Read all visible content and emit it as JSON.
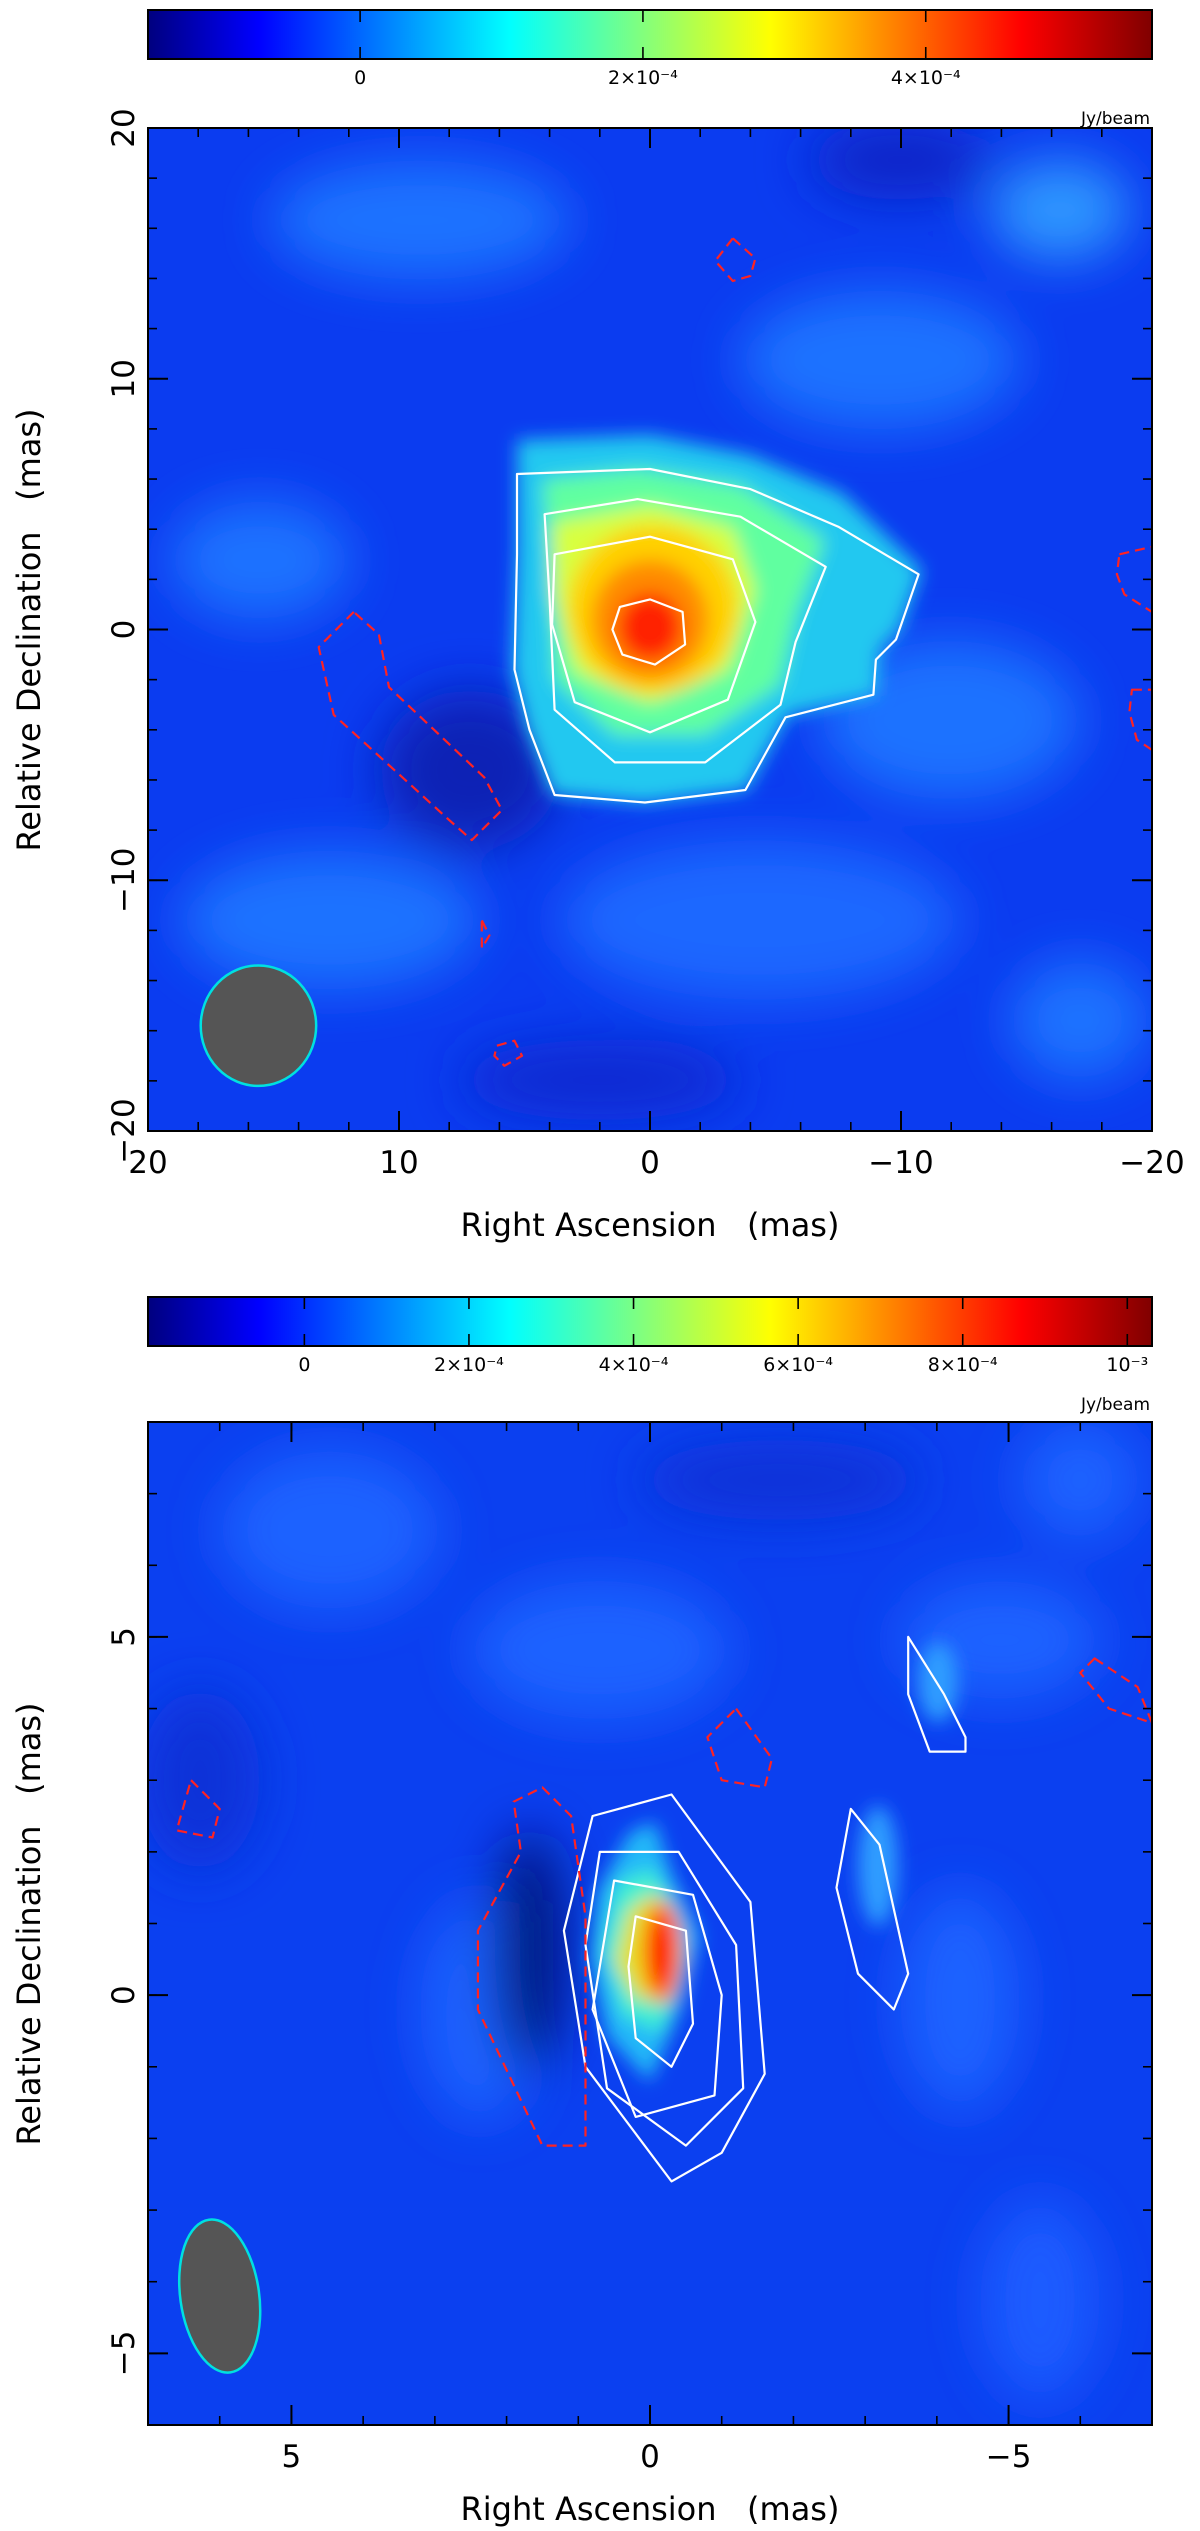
{
  "chart_data": [
    {
      "type": "heatmap",
      "xlabel": "Right Ascension   (mas)",
      "ylabel": "Relative Declination   (mas)",
      "xlim": [
        20,
        -20
      ],
      "ylim": [
        -20,
        20
      ],
      "x_ticks": [
        {
          "value": 20,
          "label": "20"
        },
        {
          "value": 10,
          "label": "10"
        },
        {
          "value": 0,
          "label": "0"
        },
        {
          "value": -10,
          "label": "−10"
        },
        {
          "value": -20,
          "label": "−20"
        }
      ],
      "y_ticks": [
        {
          "value": 20,
          "label": "20"
        },
        {
          "value": 10,
          "label": "10"
        },
        {
          "value": 0,
          "label": "0"
        },
        {
          "value": -10,
          "label": "−10"
        },
        {
          "value": -20,
          "label": "−20"
        }
      ],
      "minor_tick_step": 2,
      "colorbar": {
        "range": [
          -0.00015,
          0.00056
        ],
        "unit": "Jy/beam",
        "ticks": [
          {
            "value": 0,
            "label": "0"
          },
          {
            "value": 0.0002,
            "label": "2×10⁻⁴"
          },
          {
            "value": 0.0004,
            "label": "4×10⁻⁴"
          }
        ]
      },
      "colors": {
        "positive_contour": "#ffffff",
        "negative_contour": "#ff2222",
        "beam_fill": "#555555",
        "beam_edge": "#00e0e0"
      },
      "beam": {
        "x": 15.6,
        "y": -15.8,
        "major": 4.8,
        "minor": 4.6
      },
      "contours": [
        {
          "sign": "positive",
          "points": [
            [
              5.3,
              6.2
            ],
            [
              0,
              6.4
            ],
            [
              -4,
              5.6
            ],
            [
              -7.5,
              4.1
            ],
            [
              -10.7,
              2.2
            ],
            [
              -9.8,
              -0.4
            ],
            [
              -9.0,
              -1.2
            ],
            [
              -8.9,
              -2.6
            ],
            [
              -5.4,
              -3.5
            ],
            [
              -3.8,
              -6.4
            ],
            [
              0.2,
              -6.9
            ],
            [
              3.8,
              -6.6
            ],
            [
              4.8,
              -4.0
            ],
            [
              5.4,
              -1.6
            ],
            [
              5.3,
              3.0
            ]
          ]
        },
        {
          "sign": "positive",
          "points": [
            [
              4.2,
              4.6
            ],
            [
              0.5,
              5.2
            ],
            [
              -3.6,
              4.5
            ],
            [
              -7.0,
              2.5
            ],
            [
              -5.8,
              -0.5
            ],
            [
              -5.2,
              -3.0
            ],
            [
              -2.2,
              -5.3
            ],
            [
              1.4,
              -5.3
            ],
            [
              3.8,
              -3.2
            ],
            [
              4.0,
              1.2
            ]
          ]
        },
        {
          "sign": "positive",
          "points": [
            [
              3.8,
              3.0
            ],
            [
              0,
              3.7
            ],
            [
              -3.3,
              2.8
            ],
            [
              -4.2,
              0.3
            ],
            [
              -3.1,
              -2.8
            ],
            [
              0,
              -4.1
            ],
            [
              3.0,
              -2.9
            ],
            [
              3.9,
              0.2
            ]
          ]
        },
        {
          "sign": "positive",
          "points": [
            [
              1.2,
              0.9
            ],
            [
              0,
              1.2
            ],
            [
              -1.3,
              0.7
            ],
            [
              -1.4,
              -0.6
            ],
            [
              -0.2,
              -1.4
            ],
            [
              1.1,
              -1.0
            ],
            [
              1.5,
              0.0
            ]
          ]
        },
        {
          "sign": "negative",
          "points": [
            [
              11.8,
              0.7
            ],
            [
              13.2,
              -0.7
            ],
            [
              12.6,
              -3.4
            ],
            [
              10.3,
              -5.5
            ],
            [
              8.0,
              -7.6
            ],
            [
              7.1,
              -8.4
            ],
            [
              5.9,
              -7.2
            ],
            [
              6.6,
              -5.9
            ],
            [
              8.6,
              -4.0
            ],
            [
              10.4,
              -2.3
            ],
            [
              10.8,
              -0.2
            ]
          ]
        },
        {
          "sign": "negative",
          "points": [
            [
              -3.3,
              15.6
            ],
            [
              -4.2,
              14.8
            ],
            [
              -4.0,
              14.1
            ],
            [
              -3.3,
              13.9
            ],
            [
              -2.6,
              14.7
            ]
          ]
        },
        {
          "sign": "negative",
          "points": [
            [
              -18.7,
              3.0
            ],
            [
              -20,
              3.3
            ],
            [
              -20,
              0.7
            ],
            [
              -18.9,
              1.4
            ],
            [
              -18.6,
              2.2
            ]
          ]
        },
        {
          "sign": "negative",
          "points": [
            [
              -19.2,
              -2.4
            ],
            [
              -20,
              -2.4
            ],
            [
              -20,
              -4.8
            ],
            [
              -19.4,
              -4.4
            ],
            [
              -19.1,
              -3.3
            ]
          ]
        },
        {
          "sign": "negative",
          "points": [
            [
              6.7,
              -11.6
            ],
            [
              6.4,
              -12.2
            ],
            [
              6.7,
              -12.7
            ]
          ]
        },
        {
          "sign": "negative",
          "points": [
            [
              6.1,
              -16.6
            ],
            [
              5.4,
              -16.4
            ],
            [
              5.1,
              -17.0
            ],
            [
              5.8,
              -17.4
            ],
            [
              6.2,
              -17.0
            ]
          ]
        }
      ]
    },
    {
      "type": "heatmap",
      "xlabel": "Right Ascension   (mas)",
      "ylabel": "Relative Declination   (mas)",
      "xlim": [
        7,
        -7
      ],
      "ylim": [
        -6,
        8
      ],
      "x_ticks": [
        {
          "value": 5,
          "label": "5"
        },
        {
          "value": 0,
          "label": "0"
        },
        {
          "value": -5,
          "label": "−5"
        }
      ],
      "y_ticks": [
        {
          "value": 5,
          "label": "5"
        },
        {
          "value": 0,
          "label": "0"
        },
        {
          "value": -5,
          "label": "−5"
        }
      ],
      "minor_tick_step": 1,
      "colorbar": {
        "range": [
          -0.00019,
          0.00103
        ],
        "unit": "Jy/beam",
        "ticks": [
          {
            "value": 0,
            "label": "0"
          },
          {
            "value": 0.0002,
            "label": "2×10⁻⁴"
          },
          {
            "value": 0.0004,
            "label": "4×10⁻⁴"
          },
          {
            "value": 0.0006,
            "label": "6×10⁻⁴"
          },
          {
            "value": 0.0008,
            "label": "8×10⁻⁴"
          },
          {
            "value": 0.001,
            "label": "10⁻³"
          }
        ]
      },
      "colors": {
        "positive_contour": "#ffffff",
        "negative_contour": "#ff2222",
        "beam_fill": "#555555",
        "beam_edge": "#00e0e0"
      },
      "beam": {
        "x": 6.0,
        "y": -4.2,
        "major": 2.15,
        "minor": 1.1,
        "tilt_deg": 8
      },
      "contours": [
        {
          "sign": "positive",
          "points": [
            [
              0.8,
              2.5
            ],
            [
              -0.3,
              2.8
            ],
            [
              -1.4,
              1.3
            ],
            [
              -1.6,
              -1.1
            ],
            [
              -1.0,
              -2.2
            ],
            [
              -0.3,
              -2.6
            ],
            [
              0.9,
              -1.0
            ],
            [
              1.2,
              0.9
            ]
          ]
        },
        {
          "sign": "positive",
          "points": [
            [
              0.7,
              2.0
            ],
            [
              -0.4,
              2.0
            ],
            [
              -1.2,
              0.7
            ],
            [
              -1.3,
              -1.3
            ],
            [
              -0.5,
              -2.1
            ],
            [
              0.6,
              -1.3
            ],
            [
              0.9,
              0.7
            ]
          ]
        },
        {
          "sign": "positive",
          "points": [
            [
              0.5,
              1.6
            ],
            [
              -0.6,
              1.4
            ],
            [
              -1.0,
              0.0
            ],
            [
              -0.9,
              -1.4
            ],
            [
              0.2,
              -1.7
            ],
            [
              0.8,
              -0.2
            ]
          ]
        },
        {
          "sign": "positive",
          "points": [
            [
              0.2,
              1.1
            ],
            [
              -0.5,
              0.9
            ],
            [
              -0.6,
              -0.4
            ],
            [
              -0.3,
              -1.0
            ],
            [
              0.2,
              -0.6
            ],
            [
              0.3,
              0.4
            ]
          ]
        },
        {
          "sign": "positive",
          "points": [
            [
              -2.8,
              2.6
            ],
            [
              -3.2,
              2.1
            ],
            [
              -3.6,
              0.3
            ],
            [
              -3.4,
              -0.2
            ],
            [
              -2.9,
              0.3
            ],
            [
              -2.6,
              1.5
            ]
          ]
        },
        {
          "sign": "positive",
          "points": [
            [
              -3.6,
              5.0
            ],
            [
              -4.1,
              4.2
            ],
            [
              -4.4,
              3.6
            ],
            [
              -4.4,
              3.4
            ],
            [
              -3.9,
              3.4
            ],
            [
              -3.6,
              4.2
            ]
          ]
        },
        {
          "sign": "negative",
          "points": [
            [
              1.5,
              2.9
            ],
            [
              1.1,
              2.5
            ],
            [
              0.9,
              1.1
            ],
            [
              0.9,
              -0.8
            ],
            [
              0.9,
              -2.1
            ],
            [
              1.5,
              -2.1
            ],
            [
              2.4,
              -0.2
            ],
            [
              2.4,
              0.9
            ],
            [
              1.8,
              2.0
            ],
            [
              1.9,
              2.7
            ]
          ]
        },
        {
          "sign": "negative",
          "points": [
            [
              -1.2,
              4.0
            ],
            [
              -1.7,
              3.3
            ],
            [
              -1.6,
              2.9
            ],
            [
              -1.0,
              3.0
            ],
            [
              -0.8,
              3.6
            ]
          ]
        },
        {
          "sign": "negative",
          "points": [
            [
              6.4,
              3.0
            ],
            [
              6.0,
              2.6
            ],
            [
              6.1,
              2.2
            ],
            [
              6.6,
              2.3
            ]
          ]
        },
        {
          "sign": "negative",
          "points": [
            [
              -6.2,
              4.7
            ],
            [
              -6.8,
              4.3
            ],
            [
              -7,
              3.8
            ],
            [
              -6.4,
              4.0
            ],
            [
              -6.0,
              4.5
            ]
          ]
        }
      ]
    }
  ]
}
